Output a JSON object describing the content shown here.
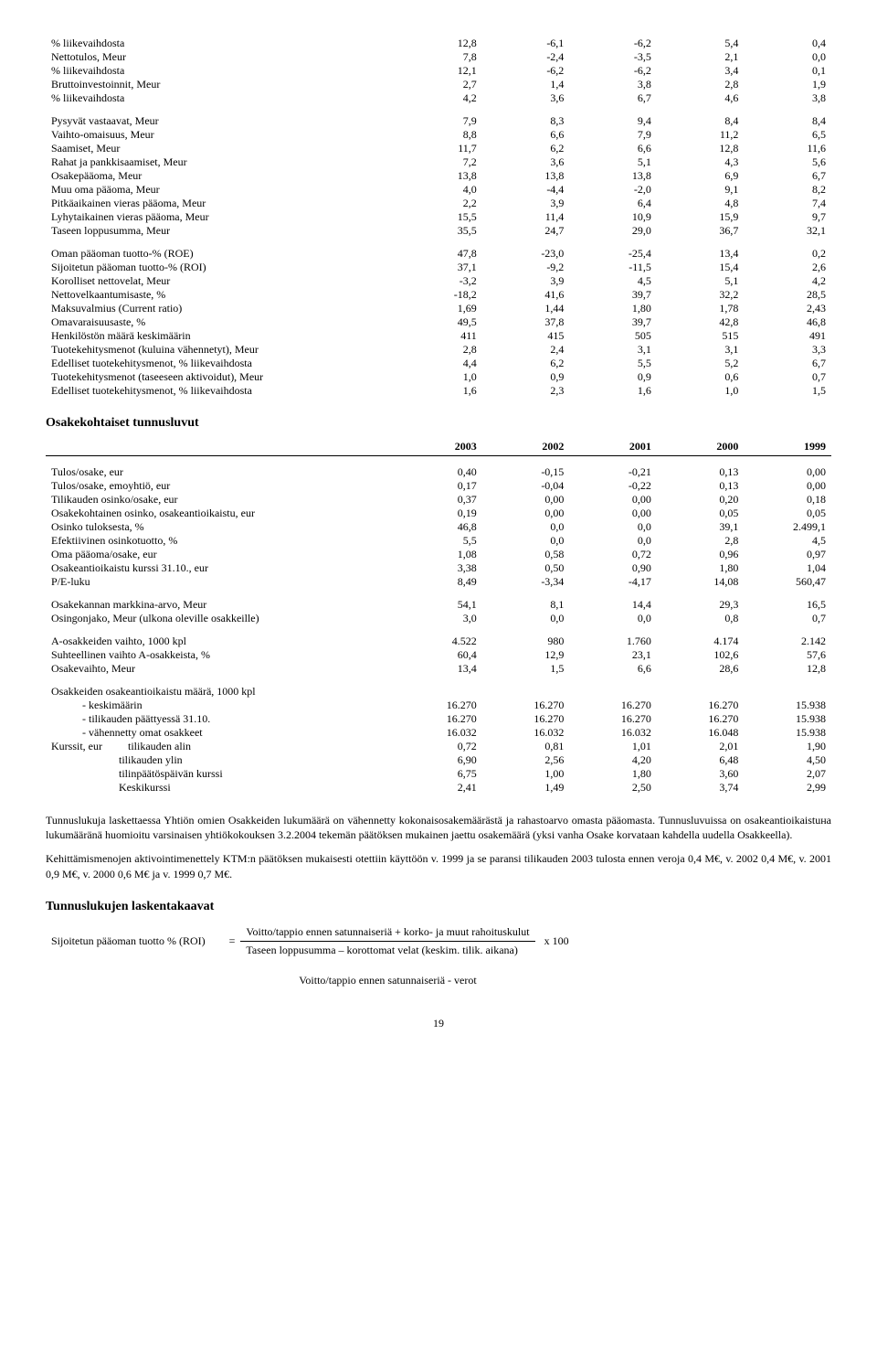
{
  "table1": {
    "rows": [
      {
        "label": "% liikevaihdosta",
        "v": [
          "12,8",
          "-6,1",
          "-6,2",
          "5,4",
          "0,4"
        ]
      },
      {
        "label": "Nettotulos, Meur",
        "v": [
          "7,8",
          "-2,4",
          "-3,5",
          "2,1",
          "0,0"
        ]
      },
      {
        "label": "% liikevaihdosta",
        "v": [
          "12,1",
          "-6,2",
          "-6,2",
          "3,4",
          "0,1"
        ]
      },
      {
        "label": "Bruttoinvestoinnit, Meur",
        "v": [
          "2,7",
          "1,4",
          "3,8",
          "2,8",
          "1,9"
        ]
      },
      {
        "label": "% liikevaihdosta",
        "v": [
          "4,2",
          "3,6",
          "6,7",
          "4,6",
          "3,8"
        ]
      }
    ],
    "rows2": [
      {
        "label": "Pysyvät vastaavat, Meur",
        "v": [
          "7,9",
          "8,3",
          "9,4",
          "8,4",
          "8,4"
        ]
      },
      {
        "label": "Vaihto-omaisuus, Meur",
        "v": [
          "8,8",
          "6,6",
          "7,9",
          "11,2",
          "6,5"
        ]
      },
      {
        "label": "Saamiset, Meur",
        "v": [
          "11,7",
          "6,2",
          "6,6",
          "12,8",
          "11,6"
        ]
      },
      {
        "label": "Rahat ja pankkisaamiset, Meur",
        "v": [
          "7,2",
          "3,6",
          "5,1",
          "4,3",
          "5,6"
        ]
      },
      {
        "label": "Osakepääoma, Meur",
        "v": [
          "13,8",
          "13,8",
          "13,8",
          "6,9",
          "6,7"
        ]
      },
      {
        "label": "Muu oma pääoma, Meur",
        "v": [
          "4,0",
          "-4,4",
          "-2,0",
          "9,1",
          "8,2"
        ]
      },
      {
        "label": "Pitkäaikainen vieras pääoma, Meur",
        "v": [
          "2,2",
          "3,9",
          "6,4",
          "4,8",
          "7,4"
        ]
      },
      {
        "label": "Lyhytaikainen vieras pääoma, Meur",
        "v": [
          "15,5",
          "11,4",
          "10,9",
          "15,9",
          "9,7"
        ]
      },
      {
        "label": "Taseen loppusumma, Meur",
        "v": [
          "35,5",
          "24,7",
          "29,0",
          "36,7",
          "32,1"
        ]
      }
    ],
    "rows3": [
      {
        "label": "Oman pääoman tuotto-% (ROE)",
        "v": [
          "47,8",
          "-23,0",
          "-25,4",
          "13,4",
          "0,2"
        ]
      },
      {
        "label": "Sijoitetun pääoman tuotto-% (ROI)",
        "v": [
          "37,1",
          "-9,2",
          "-11,5",
          "15,4",
          "2,6"
        ]
      },
      {
        "label": "Korolliset nettovelat, Meur",
        "v": [
          "-3,2",
          "3,9",
          "4,5",
          "5,1",
          "4,2"
        ]
      },
      {
        "label": "Nettovelkaantumisaste, %",
        "v": [
          "-18,2",
          "41,6",
          "39,7",
          "32,2",
          "28,5"
        ]
      },
      {
        "label": "Maksuvalmius (Current ratio)",
        "v": [
          "1,69",
          "1,44",
          "1,80",
          "1,78",
          "2,43"
        ]
      },
      {
        "label": "Omavaraisuusaste, %",
        "v": [
          "49,5",
          "37,8",
          "39,7",
          "42,8",
          "46,8"
        ]
      },
      {
        "label": "Henkilöstön määrä keskimäärin",
        "v": [
          "411",
          "415",
          "505",
          "515",
          "491"
        ]
      },
      {
        "label": "Tuotekehitysmenot (kuluina vähennetyt), Meur",
        "v": [
          "2,8",
          "2,4",
          "3,1",
          "3,1",
          "3,3"
        ]
      },
      {
        "label": "Edelliset tuotekehitysmenot, % liikevaihdosta",
        "v": [
          "4,4",
          "6,2",
          "5,5",
          "5,2",
          "6,7"
        ]
      },
      {
        "label": "Tuotekehitysmenot (taseeseen aktivoidut), Meur",
        "v": [
          "1,0",
          "0,9",
          "0,9",
          "0,6",
          "0,7"
        ]
      },
      {
        "label": "Edelliset tuotekehitysmenot, % liikevaihdosta",
        "v": [
          "1,6",
          "2,3",
          "1,6",
          "1,0",
          "1,5"
        ]
      }
    ]
  },
  "section2_title": "Osakekohtaiset tunnusluvut",
  "years": [
    "2003",
    "2002",
    "2001",
    "2000",
    "1999"
  ],
  "table2": {
    "rows": [
      {
        "label": "Tulos/osake, eur",
        "v": [
          "0,40",
          "-0,15",
          "-0,21",
          "0,13",
          "0,00"
        ]
      },
      {
        "label": "Tulos/osake, emoyhtiö, eur",
        "v": [
          "0,17",
          "-0,04",
          "-0,22",
          "0,13",
          "0,00"
        ]
      },
      {
        "label": "Tilikauden osinko/osake, eur",
        "v": [
          "0,37",
          "0,00",
          "0,00",
          "0,20",
          "0,18"
        ]
      },
      {
        "label": "Osakekohtainen osinko, osakeantioikaistu, eur",
        "v": [
          "0,19",
          "0,00",
          "0,00",
          "0,05",
          "0,05"
        ]
      },
      {
        "label": "Osinko tuloksesta, %",
        "v": [
          "46,8",
          "0,0",
          "0,0",
          "39,1",
          "2.499,1"
        ]
      },
      {
        "label": "Efektiivinen osinkotuotto, %",
        "v": [
          "5,5",
          "0,0",
          "0,0",
          "2,8",
          "4,5"
        ]
      },
      {
        "label": "Oma pääoma/osake, eur",
        "v": [
          "1,08",
          "0,58",
          "0,72",
          "0,96",
          "0,97"
        ]
      },
      {
        "label": "Osakeantioikaistu kurssi 31.10., eur",
        "v": [
          "3,38",
          "0,50",
          "0,90",
          "1,80",
          "1,04"
        ]
      },
      {
        "label": "P/E-luku",
        "v": [
          "8,49",
          "-3,34",
          "-4,17",
          "14,08",
          "560,47"
        ]
      }
    ],
    "rows2": [
      {
        "label": "Osakekannan markkina-arvo, Meur",
        "v": [
          "54,1",
          "8,1",
          "14,4",
          "29,3",
          "16,5"
        ]
      },
      {
        "label": "Osingonjako, Meur (ulkona oleville osakkeille)",
        "v": [
          "3,0",
          "0,0",
          "0,0",
          "0,8",
          "0,7"
        ]
      }
    ],
    "rows3": [
      {
        "label": "A-osakkeiden vaihto, 1000 kpl",
        "v": [
          "4.522",
          "980",
          "1.760",
          "4.174",
          "2.142"
        ]
      },
      {
        "label": "Suhteellinen vaihto A-osakkeista, %",
        "v": [
          "60,4",
          "12,9",
          "23,1",
          "102,6",
          "57,6"
        ]
      },
      {
        "label": "Osakevaihto, Meur",
        "v": [
          "13,4",
          "1,5",
          "6,6",
          "28,6",
          "12,8"
        ]
      }
    ],
    "rows4_header": "Osakkeiden osakeantioikaistu määrä, 1000 kpl",
    "rows4": [
      {
        "label": "- keskimäärin",
        "v": [
          "16.270",
          "16.270",
          "16.270",
          "16.270",
          "15.938"
        ]
      },
      {
        "label": "- tilikauden päättyessä 31.10.",
        "v": [
          "16.270",
          "16.270",
          "16.270",
          "16.270",
          "15.938"
        ]
      },
      {
        "label": "- vähennetty omat osakkeet",
        "v": [
          "16.032",
          "16.032",
          "16.032",
          "16.048",
          "15.938"
        ]
      }
    ],
    "rows5_prefix": "Kurssit, eur",
    "rows5": [
      {
        "label": "tilikauden alin",
        "v": [
          "0,72",
          "0,81",
          "1,01",
          "2,01",
          "1,90"
        ]
      },
      {
        "label": "tilikauden ylin",
        "v": [
          "6,90",
          "2,56",
          "4,20",
          "6,48",
          "4,50"
        ]
      },
      {
        "label": "tilinpäätöspäivän kurssi",
        "v": [
          "6,75",
          "1,00",
          "1,80",
          "3,60",
          "2,07"
        ]
      },
      {
        "label": "Keskikurssi",
        "v": [
          "2,41",
          "1,49",
          "2,50",
          "3,74",
          "2,99"
        ]
      }
    ]
  },
  "para1": "Tunnuslukuja laskettaessa Yhtiön omien Osakkeiden lukumäärä on vähennetty kokonaisosakemäärästä ja rahastoarvo omasta pääomasta. Tunnusluvuissa on osakeantioikaistuна lukumääränä huomioitu varsinaisen yhtiökokouksen 3.2.2004 tekemän päätöksen mukainen jaettu osakemäärä (yksi vanha Osake korvataan kahdella uudella Osakkeella).",
  "para2": "Kehittämismenojen aktivointimenettely KTM:n päätöksen mukaisesti otettiin käyttöön v. 1999 ja se paransi tilikauden 2003 tulosta ennen veroja 0,4 M€, v. 2002 0,4 M€, v. 2001 0,9 M€, v. 2000 0,6 M€ ja v. 1999 0,7 M€.",
  "section3_title": "Tunnuslukujen laskentakaavat",
  "formula": {
    "lhs": "Sijoitetun pääoman tuotto % (ROI)",
    "eq": "=",
    "num": "Voitto/tappio ennen satunnaiseriä + korko- ja muut rahoituskulut",
    "den": "Taseen loppusumma – korottomat velat (keskim. tilik. aikana)",
    "suffix": "x 100",
    "extra": "Voitto/tappio ennen satunnaiseriä - verot"
  },
  "page_number": "19"
}
